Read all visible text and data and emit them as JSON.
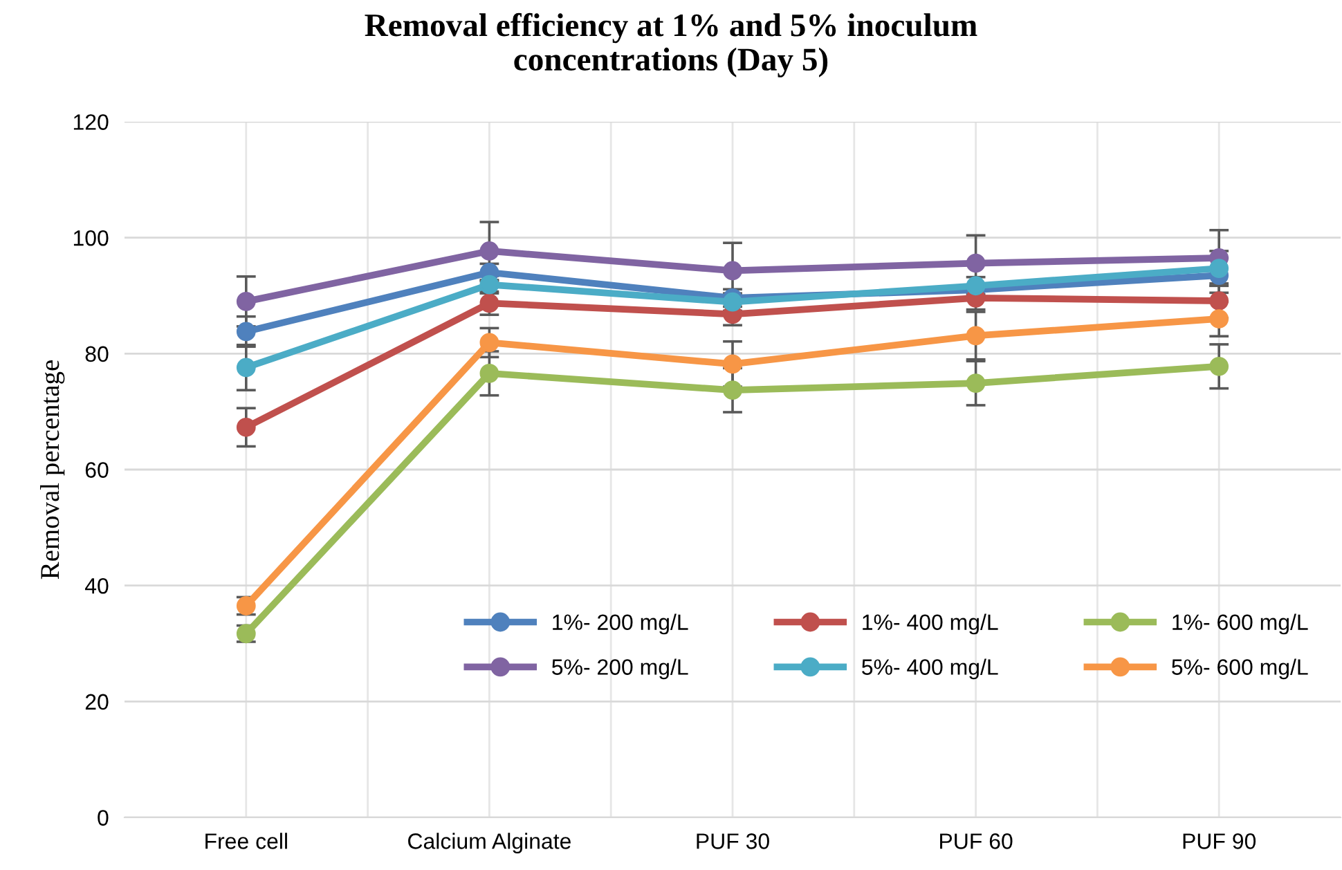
{
  "chart_data": {
    "type": "line",
    "title": "Removal efficiency at 1% and 5% inoculum\nconcentrations (Day 5)",
    "ylabel": "Removal percentage",
    "categories": [
      "Free cell",
      "Calcium Alginate",
      "PUF 30",
      "PUF 60",
      "PUF 90"
    ],
    "series": [
      {
        "name": "1%- 200 mg/L",
        "color": "#4f81bd",
        "values": [
          83.8,
          94.0,
          89.6,
          91.0,
          93.5
        ],
        "errors": [
          2.6,
          1.5,
          1.5,
          null,
          3
        ]
      },
      {
        "name": "1%- 400 mg/L",
        "color": "#c0504d",
        "values": [
          67.3,
          88.7,
          86.8,
          89.6,
          89.1
        ],
        "errors": [
          3.3,
          2,
          1.9,
          2,
          3
        ]
      },
      {
        "name": "1%- 600 mg/L",
        "color": "#9bbb59",
        "values": [
          31.7,
          76.6,
          73.7,
          74.9,
          77.8
        ],
        "errors": [
          1.4,
          3.8,
          3.8,
          3.8,
          3.8
        ]
      },
      {
        "name": "5%- 200 mg/L",
        "color": "#8064a2",
        "values": [
          89.0,
          97.7,
          94.3,
          95.6,
          96.5
        ],
        "errors": [
          4.3,
          5.0,
          4.8,
          4.8,
          4.8
        ]
      },
      {
        "name": "5%- 400 mg/L",
        "color": "#4bacc6",
        "values": [
          77.6,
          91.9,
          88.9,
          91.7,
          94.7
        ],
        "errors": [
          3.9,
          1.5,
          1.5,
          1.5,
          3
        ]
      },
      {
        "name": "5%- 600 mg/L",
        "color": "#f79646",
        "values": [
          36.5,
          81.9,
          78.2,
          83.1,
          86.0
        ],
        "errors": [
          1.5,
          2.5,
          3.9,
          4.1,
          3
        ]
      }
    ],
    "ylim": [
      0,
      120
    ],
    "yticks": [
      0,
      20,
      40,
      60,
      80,
      100,
      120
    ],
    "grid": true,
    "legend": "bottom right",
    "marker": "circle",
    "line_style": "solid"
  }
}
